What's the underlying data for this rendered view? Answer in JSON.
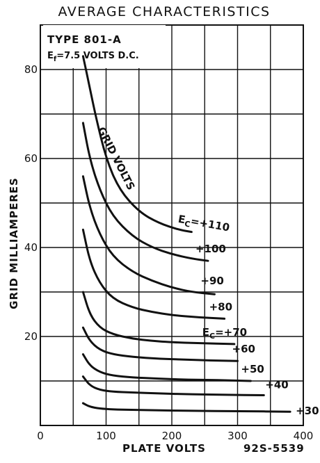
{
  "chart_data": {
    "type": "line",
    "title": "AVERAGE CHARACTERISTICS",
    "xlabel": "PLATE VOLTS",
    "ylabel": "GRID MILLIAMPERES",
    "figure_code": "92S-5539",
    "tube_type": "TYPE 801-A",
    "filament_note": "=7.5 VOLTS D.C.",
    "filament_symbol": "E",
    "filament_subscript": "f",
    "grid_volts_label": "GRID VOLTS",
    "xlim": [
      0,
      400
    ],
    "ylim": [
      0,
      90
    ],
    "xticks": [
      0,
      100,
      200,
      300,
      400
    ],
    "yticks": [
      20,
      40,
      60,
      80
    ],
    "grid": true,
    "series": [
      {
        "name": "E_C=+110",
        "label": "E",
        "label_sub": "C",
        "label_rest": "=+110",
        "x": [
          65,
          75,
          85,
          100,
          120,
          150,
          180,
          210,
          230
        ],
        "y": [
          83,
          76,
          69,
          60,
          53,
          48,
          45.5,
          44,
          43.5
        ]
      },
      {
        "name": "+100",
        "label": "+100",
        "x": [
          65,
          75,
          90,
          110,
          140,
          170,
          200,
          230,
          255
        ],
        "y": [
          68,
          60,
          53,
          47,
          42.5,
          40,
          38.5,
          37.5,
          37
        ]
      },
      {
        "name": "+90",
        "label": "+90",
        "x": [
          65,
          75,
          90,
          110,
          140,
          170,
          200,
          230,
          265
        ],
        "y": [
          56,
          49,
          43,
          38,
          34.5,
          32.5,
          31,
          30,
          29.5
        ]
      },
      {
        "name": "+80",
        "label": "+80",
        "x": [
          65,
          75,
          90,
          110,
          140,
          170,
          200,
          240,
          280
        ],
        "y": [
          44,
          37,
          32,
          28.5,
          26.5,
          25.5,
          24.8,
          24.3,
          24
        ]
      },
      {
        "name": "E_C=+70",
        "label": "E",
        "label_sub": "C",
        "label_rest": "=+70",
        "x": [
          65,
          75,
          90,
          110,
          140,
          170,
          200,
          240,
          295
        ],
        "y": [
          30,
          25,
          22,
          20.5,
          19.5,
          19,
          18.7,
          18.5,
          18.3
        ]
      },
      {
        "name": "+60",
        "label": "+60",
        "x": [
          65,
          75,
          90,
          110,
          140,
          180,
          220,
          260,
          300
        ],
        "y": [
          22,
          19,
          17,
          16,
          15.4,
          15,
          14.8,
          14.6,
          14.5
        ]
      },
      {
        "name": "+50",
        "label": "+50",
        "x": [
          65,
          75,
          90,
          110,
          140,
          180,
          220,
          270,
          320
        ],
        "y": [
          16,
          13.5,
          12,
          11.2,
          10.8,
          10.5,
          10.3,
          10.2,
          10
        ]
      },
      {
        "name": "+40",
        "label": "+40",
        "x": [
          65,
          75,
          90,
          110,
          140,
          180,
          230,
          280,
          340
        ],
        "y": [
          11,
          9,
          8,
          7.6,
          7.4,
          7.2,
          7,
          6.9,
          6.8
        ]
      },
      {
        "name": "+30",
        "label": "+30",
        "x": [
          65,
          75,
          90,
          110,
          140,
          180,
          230,
          300,
          380
        ],
        "y": [
          5,
          4.2,
          3.8,
          3.6,
          3.5,
          3.4,
          3.3,
          3.2,
          3.1
        ]
      }
    ]
  }
}
